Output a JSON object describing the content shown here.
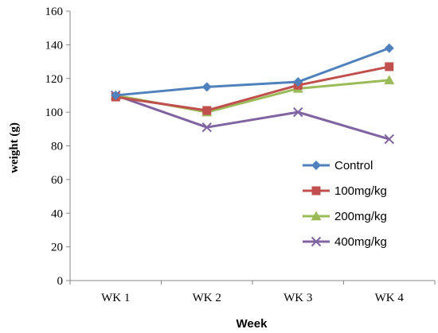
{
  "chart_data": {
    "type": "line",
    "categories": [
      "WK 1",
      "WK 2",
      "WK 3",
      "WK 4"
    ],
    "series": [
      {
        "name": "Control",
        "values": [
          110,
          115,
          118,
          138
        ],
        "color": "#4F81BD",
        "marker": "diamond"
      },
      {
        "name": "100mg/kg",
        "values": [
          109,
          101,
          116,
          127
        ],
        "color": "#C0504D",
        "marker": "square"
      },
      {
        "name": "200mg/kg",
        "values": [
          110,
          100,
          114,
          119
        ],
        "color": "#9BBB59",
        "marker": "triangle"
      },
      {
        "name": "400mg/kg",
        "values": [
          110,
          91,
          100,
          84
        ],
        "color": "#8064A2",
        "marker": "x"
      }
    ],
    "xlabel": "Week",
    "ylabel": "weight (g)",
    "ylim": [
      0,
      160
    ],
    "yticks": [
      0,
      20,
      40,
      60,
      80,
      100,
      120,
      140,
      160
    ],
    "grid": false,
    "legend": "right"
  }
}
